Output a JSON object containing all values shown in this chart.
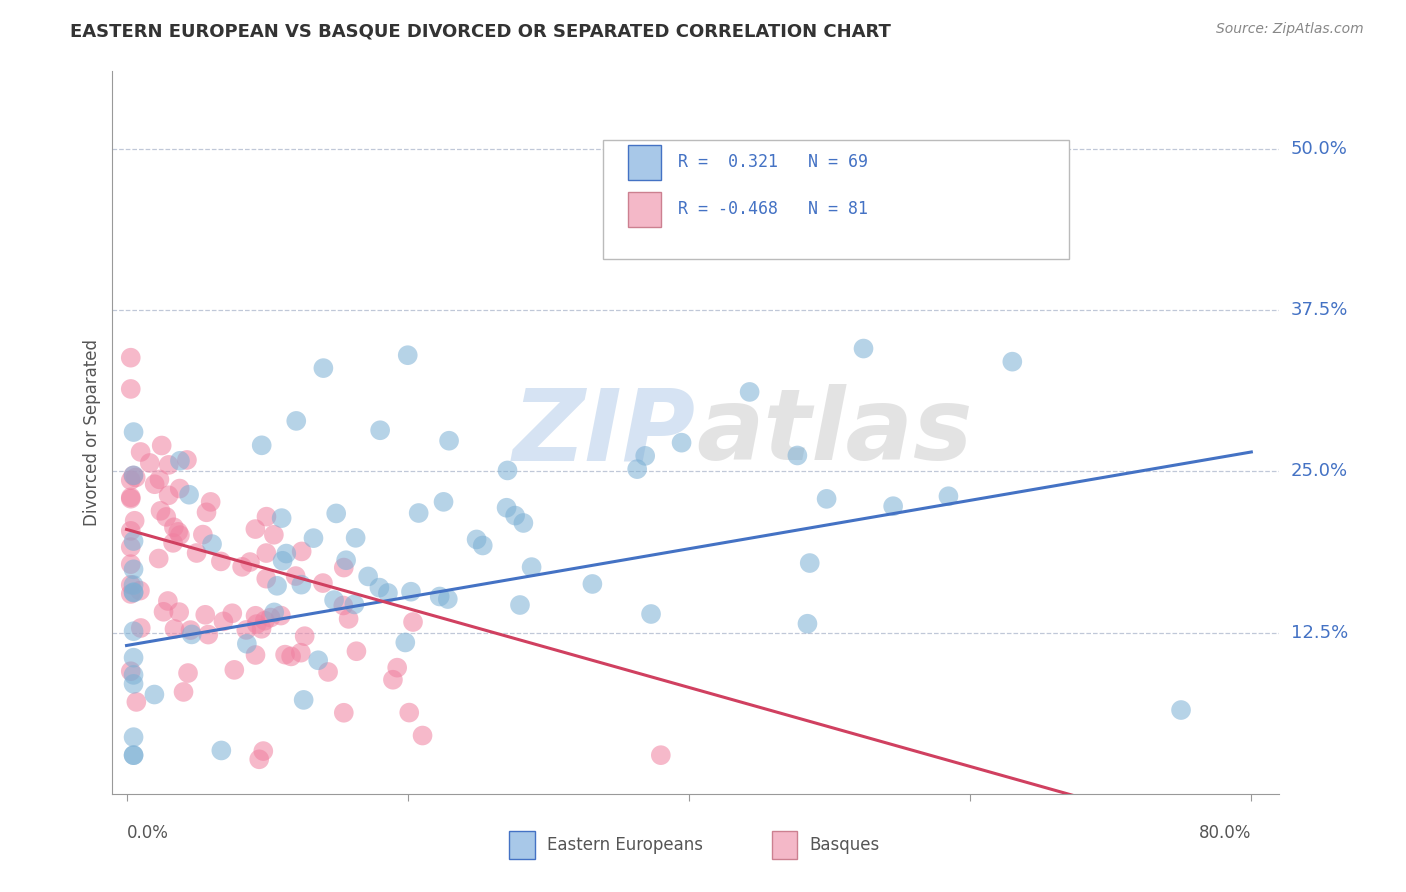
{
  "title": "EASTERN EUROPEAN VS BASQUE DIVORCED OR SEPARATED CORRELATION CHART",
  "source": "Source: ZipAtlas.com",
  "ylabel": "Divorced or Separated",
  "ytick_labels": [
    "12.5%",
    "25.0%",
    "37.5%",
    "50.0%"
  ],
  "ytick_values": [
    0.125,
    0.25,
    0.375,
    0.5
  ],
  "xtick_labels": [
    "0.0%",
    "80.0%"
  ],
  "xtick_values": [
    0.0,
    0.8
  ],
  "xlim": [
    -0.01,
    0.82
  ],
  "ylim": [
    0.0,
    0.56
  ],
  "legend_label1": "R =  0.321   N = 69",
  "legend_label2": "R = -0.468   N = 81",
  "legend_color1": "#a8c8e8",
  "legend_color2": "#f4b8c8",
  "scatter_color1": "#7bafd4",
  "scatter_color2": "#f080a0",
  "line_color1": "#4472c4",
  "line_color2": "#d04060",
  "watermark_text": "ZIPatlas",
  "footer_label1": "Eastern Europeans",
  "footer_label2": "Basques",
  "R1": 0.321,
  "N1": 69,
  "R2": -0.468,
  "N2": 81,
  "blue_trend": [
    0.0,
    0.115,
    0.8,
    0.265
  ],
  "pink_trend": [
    0.0,
    0.205,
    0.8,
    -0.04
  ],
  "title_color": "#333333",
  "source_color": "#888888",
  "ylabel_color": "#555555",
  "grid_color": "#c0c8d8",
  "tick_label_color": "#4472c4",
  "axis_color": "#999999"
}
